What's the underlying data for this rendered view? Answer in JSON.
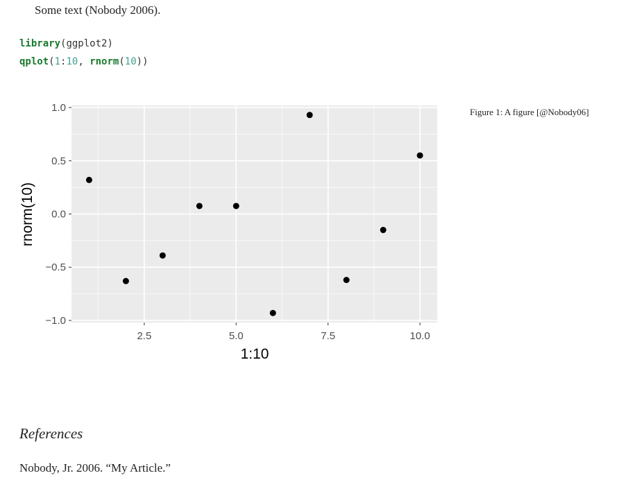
{
  "text": "Some text (Nobody 2006).",
  "code": [
    [
      "library",
      "(ggplot2)"
    ],
    [
      "qplot",
      "(",
      "1",
      ":",
      "10",
      ", ",
      "rnorm",
      "(",
      "10",
      "))"
    ]
  ],
  "chart_data": {
    "type": "scatter",
    "x_label": "1:10",
    "y_label": "rnorm(10)",
    "x": [
      1,
      2,
      3,
      4,
      5,
      6,
      7,
      8,
      9,
      10
    ],
    "values": [
      0.32,
      -0.63,
      -0.39,
      0.075,
      0.075,
      -0.93,
      0.93,
      -0.62,
      -0.15,
      0.55
    ],
    "color": "#000000",
    "xlim": [
      0.52,
      10.47
    ],
    "ylim": [
      -1.02,
      1.02
    ],
    "xticks": [
      2.5,
      {
        "value": 5,
        "label": "5.0"
      },
      7.5,
      {
        "value": 10,
        "label": "10.0"
      }
    ],
    "yticks": [
      {
        "value": -1,
        "label": "−1.0"
      },
      {
        "value": -0.5,
        "label": "−0.5"
      },
      {
        "value": 0,
        "label": "0.0"
      },
      0.5,
      {
        "value": 1,
        "label": "1.0"
      }
    ],
    "x_minor": [
      1.25,
      3.75,
      6.25,
      8.75
    ],
    "y_minor": [
      -0.75,
      -0.25,
      0.25,
      0.75
    ],
    "grid": true
  },
  "caption": "Figure 1: A figure [@Nobody06]",
  "references": {
    "title": "References",
    "entries": [
      "Nobody, Jr. 2006. “My Article.”"
    ]
  }
}
